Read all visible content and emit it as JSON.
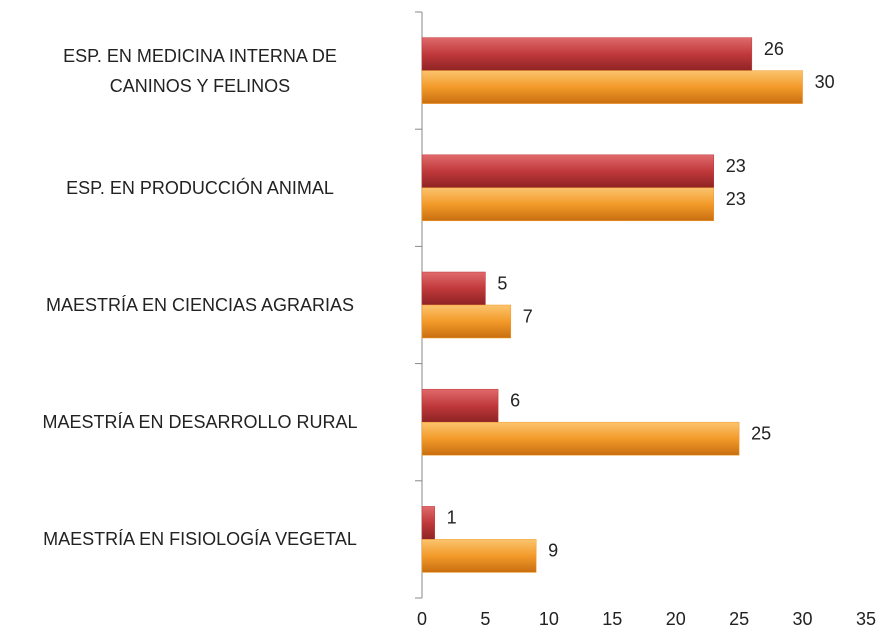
{
  "chart_data": {
    "type": "bar",
    "orientation": "horizontal",
    "categories": [
      "ESP. EN MEDICINA INTERNA DE\nCANINOS Y FELINOS",
      "ESP. EN PRODUCCIÓN ANIMAL",
      "MAESTRÍA EN CIENCIAS AGRARIAS",
      "MAESTRÍA EN DESARROLLO RURAL",
      "MAESTRÍA EN FISIOLOGÍA VEGETAL"
    ],
    "series": [
      {
        "color": "#c0393b",
        "values": [
          26,
          23,
          5,
          6,
          1
        ]
      },
      {
        "color": "#f39a2a",
        "values": [
          30,
          23,
          7,
          25,
          9
        ]
      }
    ],
    "xlim": [
      0,
      35
    ],
    "xticks": [
      0,
      5,
      10,
      15,
      20,
      25,
      30,
      35
    ],
    "grid": false
  }
}
